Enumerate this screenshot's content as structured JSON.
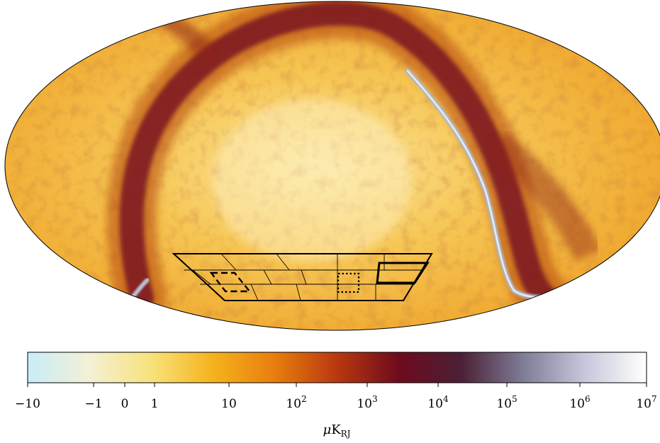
{
  "colorbar": {
    "stops": [
      "#c9ecf8",
      "#f4f0d6",
      "#f8e27a",
      "#f6b21c",
      "#e87d0e",
      "#b8380f",
      "#6e0b1c",
      "#4a2035",
      "#7e7c96",
      "#c7c7dc",
      "#ffffff"
    ],
    "tick_values": [
      -10,
      -1,
      0,
      1,
      10,
      100,
      1000,
      10000,
      100000,
      1000000,
      10000000
    ],
    "tick_labels": [
      {
        "base": "−10",
        "exp": ""
      },
      {
        "base": "−1",
        "exp": ""
      },
      {
        "base": "0",
        "exp": ""
      },
      {
        "base": "1",
        "exp": ""
      },
      {
        "base": "10",
        "exp": ""
      },
      {
        "base": "10",
        "exp": "2"
      },
      {
        "base": "10",
        "exp": "3"
      },
      {
        "base": "10",
        "exp": "4"
      },
      {
        "base": "10",
        "exp": "5"
      },
      {
        "base": "10",
        "exp": "6"
      },
      {
        "base": "10",
        "exp": "7"
      }
    ],
    "unit": {
      "prefix": "μ",
      "main": "K",
      "sub": "RJ"
    }
  },
  "map": {
    "background_color": "#f2b93a",
    "band_color": "#7a1424",
    "ridge_color": "#9fb0c8",
    "outline_color": "#000000"
  }
}
